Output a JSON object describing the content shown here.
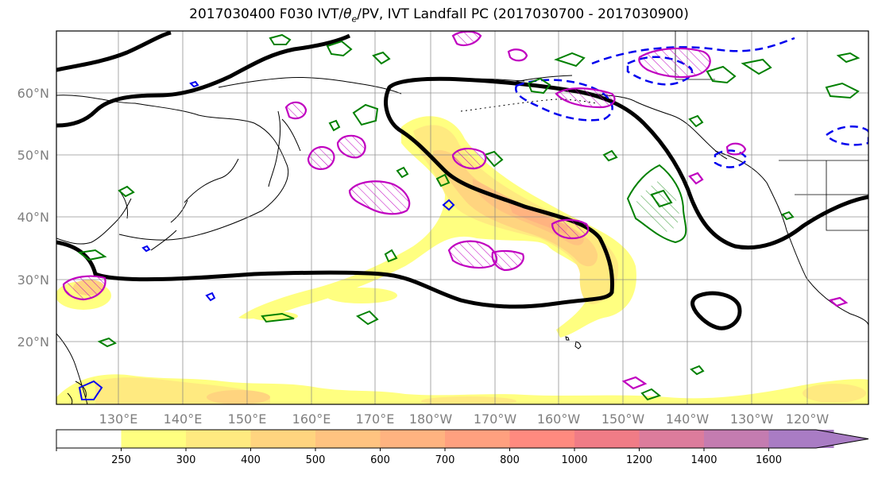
{
  "title": {
    "prefix": "2017030400 F030 IVT/",
    "theta": "θ",
    "sub": "e",
    "suffix": "/PV, IVT Landfall PC (2017030700 - 2017030900)"
  },
  "lat_labels": [
    "60°N",
    "50°N",
    "40°N",
    "30°N",
    "20°N"
  ],
  "lon_labels": [
    "130°E",
    "140°E",
    "150°E",
    "160°E",
    "170°E",
    "180°W",
    "170°W",
    "160°W",
    "150°W",
    "140°W",
    "130°W",
    "120°W"
  ],
  "colorbar": {
    "labels": [
      "250",
      "300",
      "400",
      "500",
      "600",
      "700",
      "800",
      "1000",
      "1200",
      "1400",
      "1600"
    ],
    "colors": [
      "#ffffff",
      "#ffff80",
      "#ffea80",
      "#ffd47f",
      "#ffc380",
      "#ffb380",
      "#ffa07f",
      "#ff8a7f",
      "#f07c86",
      "#dc7c9c",
      "#c47cb0",
      "#a97cc4"
    ]
  },
  "legend_colors": {
    "ivt_contour": "#000000",
    "theta_e": "#008000",
    "pv": "#c000c0",
    "pv_neg": "#0000ff"
  }
}
